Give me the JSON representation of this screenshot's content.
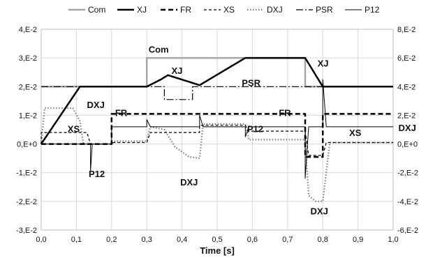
{
  "chart_data": {
    "type": "line",
    "title": "",
    "xlabel": "Time [s]",
    "ylabel": "",
    "y2label": "",
    "xlim": [
      0,
      1
    ],
    "ylim": [
      -0.03,
      0.04
    ],
    "y2lim": [
      -0.06,
      0.08
    ],
    "grid": true,
    "legend_position": "top",
    "x_ticks": [
      "0,0",
      "0,1",
      "0,2",
      "0,3",
      "0,4",
      "0,5",
      "0,6",
      "0,7",
      "0,8",
      "0,9",
      "1,0"
    ],
    "y_ticks": [
      "4,E-2",
      "3,E-2",
      "2,E-2",
      "1,E-2",
      "0,E+0",
      "-1,E-2",
      "-2,E-2",
      "-3,E-2"
    ],
    "y2_ticks": [
      "8,E-2",
      "6,E-2",
      "4,E-2",
      "2,E-2",
      "0,E+0",
      "-2,E-2",
      "-4,E-2",
      "-6,E-2"
    ],
    "series": [
      {
        "name": "Com",
        "axis": "left",
        "style": "solid",
        "color": "#a6a6a6",
        "x": [
          0,
          0.3,
          0.3,
          0.58,
          0.75,
          0.75,
          1.0
        ],
        "y": [
          0.02,
          0.02,
          0.03,
          0.03,
          0.03,
          0.02,
          0.02
        ]
      },
      {
        "name": "XJ",
        "axis": "left",
        "style": "thick",
        "color": "#000000",
        "x": [
          0,
          0.11,
          0.3,
          0.34,
          0.36,
          0.45,
          0.58,
          0.75,
          0.8,
          1.0
        ],
        "y": [
          0,
          0.02,
          0.02,
          0.0225,
          0.024,
          0.0205,
          0.03,
          0.03,
          0.02,
          0.02
        ]
      },
      {
        "name": "FR",
        "axis": "right",
        "style": "thick-dash",
        "color": "#000000",
        "x": [
          0,
          0.2,
          0.2,
          0.75,
          0.75,
          0.8,
          0.8,
          1.0
        ],
        "y": [
          0,
          0,
          0.021,
          0.021,
          -0.009,
          -0.009,
          0.021,
          0.021
        ]
      },
      {
        "name": "XS",
        "axis": "left",
        "style": "dash",
        "color": "#000000",
        "x": [
          0,
          0.0,
          0.13,
          0.14,
          0.2,
          0.2,
          0.3,
          0.31,
          0.45,
          0.45,
          0.58,
          0.59,
          0.75,
          0.76,
          0.8,
          0.81,
          1.0
        ],
        "y": [
          0,
          0.004,
          0.004,
          0.0,
          0.0,
          0.0005,
          0.0005,
          0.004,
          0.004,
          0.0065,
          0.0065,
          0.0045,
          0.0045,
          -0.004,
          -0.004,
          0.0005,
          0.0005
        ]
      },
      {
        "name": "DXJ",
        "axis": "right",
        "style": "dot",
        "color": "#808080",
        "x": [
          0,
          0.01,
          0.09,
          0.11,
          0.12,
          0.2,
          0.21,
          0.3,
          0.31,
          0.35,
          0.38,
          0.42,
          0.45,
          0.46,
          0.58,
          0.59,
          0.75,
          0.76,
          0.78,
          0.8,
          0.82,
          1.0
        ],
        "y": [
          0,
          0.025,
          0.025,
          0.016,
          0.0,
          0.0,
          0.002,
          0.002,
          0.012,
          0.01,
          -0.002,
          -0.009,
          -0.01,
          0.014,
          0.014,
          0.003,
          0.003,
          -0.036,
          -0.04,
          -0.04,
          0.001,
          0.001
        ]
      },
      {
        "name": "PSR",
        "axis": "left",
        "style": "dashdot",
        "color": "#000000",
        "x": [
          0,
          0.35,
          0.35,
          0.43,
          0.43,
          1.0
        ],
        "y": [
          0.02,
          0.02,
          0.0155,
          0.0155,
          0.02,
          0.02
        ]
      },
      {
        "name": "P12",
        "axis": "right",
        "style": "thin",
        "color": "#000000",
        "x": [
          0,
          0.14,
          0.14,
          0.145,
          0.2,
          0.2,
          0.3,
          0.3,
          0.31,
          0.45,
          0.45,
          0.46,
          0.58,
          0.58,
          0.59,
          0.75,
          0.75,
          0.76,
          0.8,
          0.8,
          0.81,
          1.0
        ],
        "y": [
          0,
          0,
          -0.019,
          0,
          0,
          0.012,
          0.012,
          0.017,
          0.012,
          0.012,
          0.02,
          0.012,
          0.012,
          0.005,
          0.012,
          0.012,
          -0.024,
          0.012,
          0.012,
          0.045,
          0.012,
          0.012
        ]
      }
    ],
    "annotations": [
      {
        "text": "Com",
        "x": 0.305,
        "y": 0.0318
      },
      {
        "text": "XJ",
        "x": 0.37,
        "y": 0.0245
      },
      {
        "text": "PSR",
        "x": 0.57,
        "y": 0.0202
      },
      {
        "text": "XJ",
        "x": 0.785,
        "y": 0.027
      },
      {
        "text": "DXJ",
        "x": 0.13,
        "y": 0.0125
      },
      {
        "text": "FR",
        "x": 0.21,
        "y": 0.0098
      },
      {
        "text": "FR",
        "x": 0.675,
        "y": 0.0098
      },
      {
        "text": "XS",
        "x": 0.075,
        "y": 0.0042
      },
      {
        "text": "P12",
        "x": 0.585,
        "y": 0.0042
      },
      {
        "text": "P12",
        "x": 0.135,
        "y": -0.0115
      },
      {
        "text": "DXJ",
        "x": 0.395,
        "y": -0.0145
      },
      {
        "text": "XS",
        "x": 0.875,
        "y": 0.0028
      },
      {
        "text": "DXJ",
        "x": 0.765,
        "y": -0.0245
      },
      {
        "text": "DXJ",
        "x": 1.015,
        "y": 0.0045
      }
    ]
  }
}
